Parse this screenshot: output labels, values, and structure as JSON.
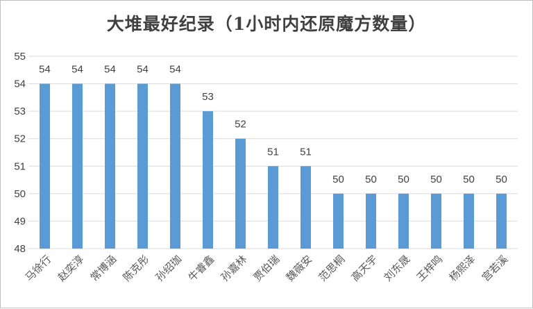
{
  "chart_data": {
    "type": "bar",
    "title": "大堆最好纪录（1小时内还原魔方数量）",
    "categories": [
      "马徐行",
      "赵奕淳",
      "常博涵",
      "陈克彤",
      "孙绍珈",
      "牛睿鑫",
      "孙嘉林",
      "贾伯瑞",
      "魏薇安",
      "范思桐",
      "高天宇",
      "刘东晟",
      "王梓鸣",
      "杨熙泽",
      "宫若溪"
    ],
    "values": [
      54,
      54,
      54,
      54,
      54,
      53,
      52,
      51,
      51,
      50,
      50,
      50,
      50,
      50,
      50
    ],
    "yticks": [
      48,
      49,
      50,
      51,
      52,
      53,
      54,
      55
    ],
    "ylim": [
      48,
      55
    ],
    "grid": true,
    "data_labels": true,
    "legend": "none",
    "bar_color": "#5b9bd5",
    "grid_color": "#d9d9d9"
  }
}
